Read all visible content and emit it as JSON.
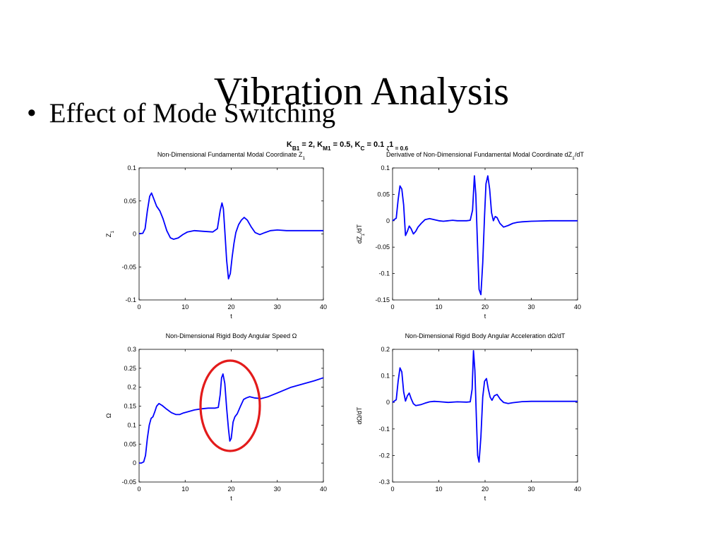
{
  "slide": {
    "title": "Vibration Analysis",
    "bullet_marker": "•",
    "bullet_text": "Effect of Mode Switching"
  },
  "figure": {
    "suptitle_parts": [
      "K",
      "B1",
      " = 2, K",
      "M1",
      " = 0.5, K",
      "C",
      " = 0.1 ",
      "ζ",
      "1",
      " = 0.6"
    ],
    "line_color": "#0000ff",
    "annotation_color": "#e31b1b"
  },
  "chart_data": [
    {
      "type": "line",
      "title": "Non-Dimensional Fundamental Modal Coordinate Z1",
      "title_parts": [
        "Non-Dimensional Fundamental Modal Coordinate Z",
        "1"
      ],
      "xlabel": "t",
      "ylabel": "Z1",
      "ylabel_parts": [
        "Z",
        "1"
      ],
      "xlim": [
        0,
        40
      ],
      "ylim": [
        -0.1,
        0.1
      ],
      "xticks": [
        0,
        10,
        20,
        30,
        40
      ],
      "yticks": [
        -0.1,
        -0.05,
        0,
        0.05,
        0.1
      ],
      "ytick_labels": [
        "-0.1",
        "-0.05",
        "0",
        "0.05",
        "0.1"
      ],
      "grid": false,
      "series": [
        {
          "x": [
            0,
            0.8,
            1.3,
            1.8,
            2.3,
            2.7,
            3.2,
            3.8,
            4.5,
            5.2,
            6,
            6.8,
            7.5,
            8.5,
            9.5,
            10.5,
            12,
            14,
            16,
            17,
            17.6,
            18,
            18.3,
            18.6,
            19,
            19.4,
            19.8,
            20.2,
            20.6,
            21,
            21.6,
            22.2,
            22.8,
            23.5,
            24.3,
            25.2,
            26.2,
            27.3,
            28.5,
            30,
            32,
            35,
            38,
            40
          ],
          "y": [
            0.0005,
            0.001,
            0.008,
            0.035,
            0.057,
            0.062,
            0.053,
            0.042,
            0.035,
            0.023,
            0.005,
            -0.006,
            -0.008,
            -0.006,
            -0.001,
            0.003,
            0.005,
            0.004,
            0.003,
            0.008,
            0.035,
            0.047,
            0.038,
            0.005,
            -0.04,
            -0.068,
            -0.06,
            -0.035,
            -0.014,
            0.002,
            0.014,
            0.021,
            0.025,
            0.021,
            0.011,
            0.002,
            -0.001,
            0.002,
            0.005,
            0.006,
            0.005,
            0.005,
            0.005,
            0.005
          ]
        }
      ]
    },
    {
      "type": "line",
      "title": "Derivative of Non-Dimensional Fundamental Modal Coordinate dZ1/dT",
      "title_parts": [
        "Derivative of Non-Dimensional Fundamental Modal Coordinate dZ",
        "1",
        "/dT"
      ],
      "xlabel": "t",
      "ylabel": "dZ1/dT",
      "ylabel_parts": [
        "dZ",
        "1",
        "/dT"
      ],
      "xlim": [
        0,
        40
      ],
      "ylim": [
        -0.15,
        0.1
      ],
      "xticks": [
        0,
        10,
        20,
        30,
        40
      ],
      "yticks": [
        -0.15,
        -0.1,
        -0.05,
        0,
        0.05,
        0.1
      ],
      "ytick_labels": [
        "-0.15",
        "-0.1",
        "-0.05",
        "0",
        "0.05",
        "0.1"
      ],
      "grid": false,
      "series": [
        {
          "x": [
            0,
            0.8,
            1.2,
            1.6,
            2,
            2.4,
            2.8,
            3.2,
            3.6,
            4,
            4.5,
            5,
            5.5,
            6.2,
            7,
            8,
            9,
            10,
            11,
            12,
            13,
            14,
            15,
            16,
            16.8,
            17.3,
            17.7,
            18,
            18.3,
            18.7,
            19.1,
            19.5,
            19.9,
            20.2,
            20.6,
            21,
            21.4,
            21.8,
            22.2,
            22.6,
            23.2,
            24,
            25,
            26,
            27,
            28,
            30,
            34,
            38,
            40
          ],
          "y": [
            0.0,
            0.005,
            0.04,
            0.066,
            0.06,
            0.03,
            -0.028,
            -0.02,
            -0.01,
            -0.015,
            -0.025,
            -0.02,
            -0.012,
            -0.005,
            0.002,
            0.004,
            0.002,
            0.0,
            -0.001,
            0.0,
            0.001,
            0.0,
            0.0,
            0.0,
            0.001,
            0.02,
            0.085,
            0.05,
            -0.03,
            -0.13,
            -0.14,
            -0.08,
            0.01,
            0.07,
            0.085,
            0.06,
            0.015,
            0.0,
            0.008,
            0.006,
            -0.005,
            -0.012,
            -0.009,
            -0.005,
            -0.003,
            -0.002,
            -0.001,
            0.0,
            0.0,
            0.0
          ]
        }
      ]
    },
    {
      "type": "line",
      "title": "Non-Dimensional Rigid Body Angular Speed Ω",
      "title_parts": [
        "Non-Dimensional Rigid Body Angular Speed Ω"
      ],
      "xlabel": "t",
      "ylabel": "Ω",
      "ylabel_parts": [
        "Ω"
      ],
      "xlim": [
        0,
        40
      ],
      "ylim": [
        -0.05,
        0.3
      ],
      "xticks": [
        0,
        10,
        20,
        30,
        40
      ],
      "yticks": [
        -0.05,
        0,
        0.05,
        0.1,
        0.15,
        0.2,
        0.25,
        0.3
      ],
      "ytick_labels": [
        "-0.05",
        "0",
        "0.05",
        "0.1",
        "0.15",
        "0.2",
        "0.25",
        "0.3"
      ],
      "grid": false,
      "series": [
        {
          "x": [
            0,
            0.5,
            1,
            1.4,
            1.8,
            2.2,
            2.6,
            3,
            3.4,
            3.8,
            4.3,
            5,
            6,
            7,
            8,
            8.8,
            9.6,
            10.5,
            12,
            13.5,
            15,
            16.5,
            17.2,
            17.6,
            17.9,
            18.2,
            18.6,
            19,
            19.4,
            19.7,
            20,
            20.4,
            20.8,
            21.3,
            22,
            22.7,
            23.3,
            24,
            25,
            26.5,
            28,
            30,
            33,
            36,
            38,
            40
          ],
          "y": [
            0.0,
            0.0,
            0.003,
            0.02,
            0.065,
            0.1,
            0.118,
            0.122,
            0.135,
            0.15,
            0.157,
            0.152,
            0.142,
            0.133,
            0.128,
            0.128,
            0.132,
            0.135,
            0.14,
            0.143,
            0.145,
            0.145,
            0.147,
            0.18,
            0.225,
            0.235,
            0.21,
            0.145,
            0.09,
            0.058,
            0.065,
            0.108,
            0.122,
            0.13,
            0.15,
            0.168,
            0.172,
            0.175,
            0.172,
            0.17,
            0.175,
            0.185,
            0.2,
            0.21,
            0.217,
            0.225
          ]
        }
      ]
    },
    {
      "type": "line",
      "title": "Non-Dimensional Rigid Body Angular Acceleration dΩ/dT",
      "title_parts": [
        "Non-Dimensional Rigid Body Angular Acceleration dΩ/dT"
      ],
      "xlabel": "t",
      "ylabel": "dΩ/dT",
      "ylabel_parts": [
        "dΩ/dT"
      ],
      "xlim": [
        0,
        40
      ],
      "ylim": [
        -0.3,
        0.2
      ],
      "xticks": [
        0,
        10,
        20,
        30,
        40
      ],
      "yticks": [
        -0.3,
        -0.2,
        -0.1,
        0,
        0.1,
        0.2
      ],
      "ytick_labels": [
        "-0.3",
        "-0.2",
        "-0.1",
        "0",
        "0.1",
        "0.2"
      ],
      "grid": false,
      "series": [
        {
          "x": [
            0,
            0.8,
            1.2,
            1.6,
            2,
            2.4,
            2.8,
            3.2,
            3.6,
            4,
            4.5,
            5,
            5.6,
            6.2,
            7,
            8,
            9,
            10,
            12,
            14,
            16,
            16.8,
            17.2,
            17.5,
            17.8,
            18.1,
            18.4,
            18.7,
            19.1,
            19.5,
            19.9,
            20.3,
            20.7,
            21.1,
            21.5,
            22,
            22.6,
            23.3,
            24,
            25,
            26,
            28,
            30,
            34,
            38,
            40
          ],
          "y": [
            0.0,
            0.01,
            0.08,
            0.13,
            0.115,
            0.04,
            0.005,
            0.025,
            0.035,
            0.015,
            -0.005,
            -0.012,
            -0.01,
            -0.008,
            -0.003,
            0.002,
            0.004,
            0.003,
            0.0,
            0.002,
            0.001,
            0.002,
            0.05,
            0.195,
            0.12,
            -0.05,
            -0.2,
            -0.225,
            -0.13,
            0.02,
            0.08,
            0.09,
            0.05,
            0.02,
            0.008,
            0.025,
            0.03,
            0.012,
            0.0,
            -0.004,
            -0.001,
            0.003,
            0.004,
            0.004,
            0.004,
            0.004
          ]
        }
      ]
    }
  ]
}
